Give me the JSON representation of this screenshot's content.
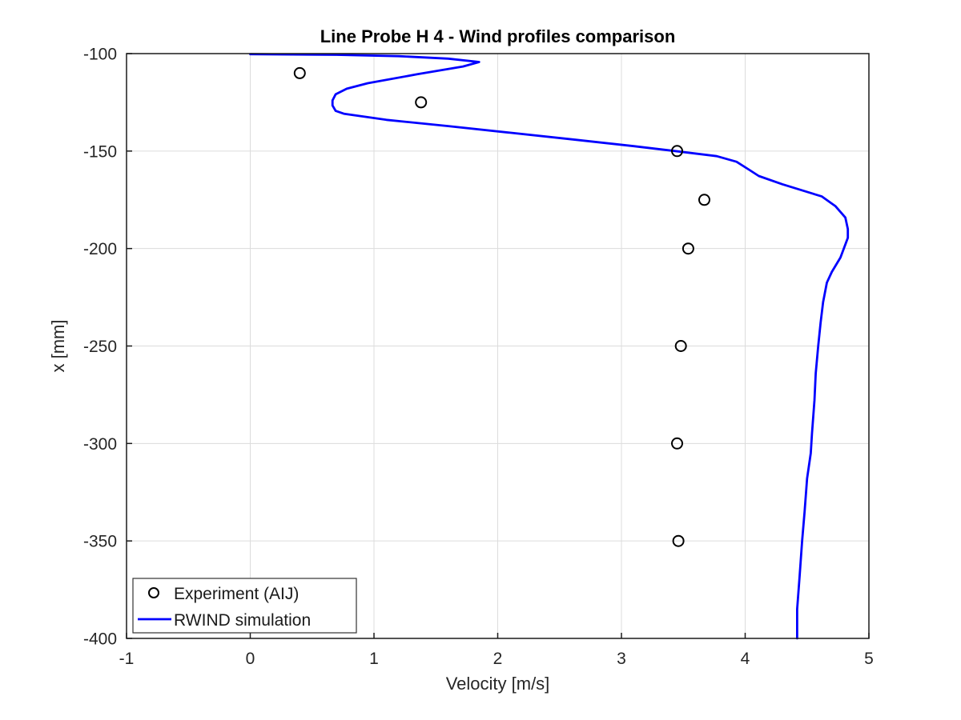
{
  "chart_data": {
    "type": "line",
    "title": "Line Probe H 4 - Wind profiles comparison",
    "xlabel": "Velocity [m/s]",
    "ylabel": "x [mm]",
    "xlim": [
      -1,
      5
    ],
    "ylim": [
      -400,
      -100
    ],
    "xticks": [
      -1,
      0,
      1,
      2,
      3,
      4,
      5
    ],
    "yticks": [
      -400,
      -350,
      -300,
      -250,
      -200,
      -150,
      -100
    ],
    "grid": true,
    "legend": {
      "position": "lower-left",
      "border": true
    },
    "colors": {
      "line": "#0000ff",
      "marker": "#000000",
      "grid": "#dcdcdc",
      "axis": "#1a1a1a",
      "tick_text": "#262626",
      "title_text": "#000000",
      "legend_border": "#333333",
      "background": "#ffffff"
    },
    "series": [
      {
        "name": "Experiment (AIJ)",
        "type": "scatter",
        "marker": "open-circle",
        "color": "#000000",
        "points": [
          [
            0.4,
            -110
          ],
          [
            1.38,
            -125
          ],
          [
            3.45,
            -150
          ],
          [
            3.67,
            -175
          ],
          [
            3.54,
            -200
          ],
          [
            3.48,
            -250
          ],
          [
            3.45,
            -300
          ],
          [
            3.46,
            -350
          ]
        ]
      },
      {
        "name": "RWIND simulation",
        "type": "line",
        "color": "#0000ff",
        "points": [
          [
            0.0,
            -100.3
          ],
          [
            0.7,
            -100.6
          ],
          [
            1.2,
            -101.3
          ],
          [
            1.6,
            -102.6
          ],
          [
            1.85,
            -104.3
          ],
          [
            1.72,
            -106.6
          ],
          [
            1.35,
            -110.6
          ],
          [
            0.95,
            -115.2
          ],
          [
            0.78,
            -118.0
          ],
          [
            0.69,
            -120.9
          ],
          [
            0.665,
            -124.0
          ],
          [
            0.665,
            -126.6
          ],
          [
            0.69,
            -129.4
          ],
          [
            0.76,
            -130.9
          ],
          [
            1.1,
            -134.0
          ],
          [
            1.6,
            -137.2
          ],
          [
            2.1,
            -140.6
          ],
          [
            2.6,
            -144.0
          ],
          [
            3.1,
            -147.5
          ],
          [
            3.46,
            -150.2
          ],
          [
            3.77,
            -152.6
          ],
          [
            3.93,
            -155.5
          ],
          [
            4.04,
            -159.9
          ],
          [
            4.11,
            -162.8
          ],
          [
            4.3,
            -167.0
          ],
          [
            4.62,
            -173.3
          ],
          [
            4.73,
            -178.3
          ],
          [
            4.81,
            -184.1
          ],
          [
            4.83,
            -190.0
          ],
          [
            4.83,
            -194.5
          ],
          [
            4.77,
            -204.6
          ],
          [
            4.7,
            -212.0
          ],
          [
            4.66,
            -217.5
          ],
          [
            4.63,
            -227.5
          ],
          [
            4.61,
            -238.0
          ],
          [
            4.59,
            -250.0
          ],
          [
            4.57,
            -264.0
          ],
          [
            4.56,
            -278.0
          ],
          [
            4.54,
            -295.0
          ],
          [
            4.53,
            -305.0
          ],
          [
            4.5,
            -318.0
          ],
          [
            4.48,
            -335.0
          ],
          [
            4.46,
            -350.0
          ],
          [
            4.44,
            -368.0
          ],
          [
            4.42,
            -385.0
          ],
          [
            4.42,
            -400.0
          ]
        ]
      }
    ]
  }
}
